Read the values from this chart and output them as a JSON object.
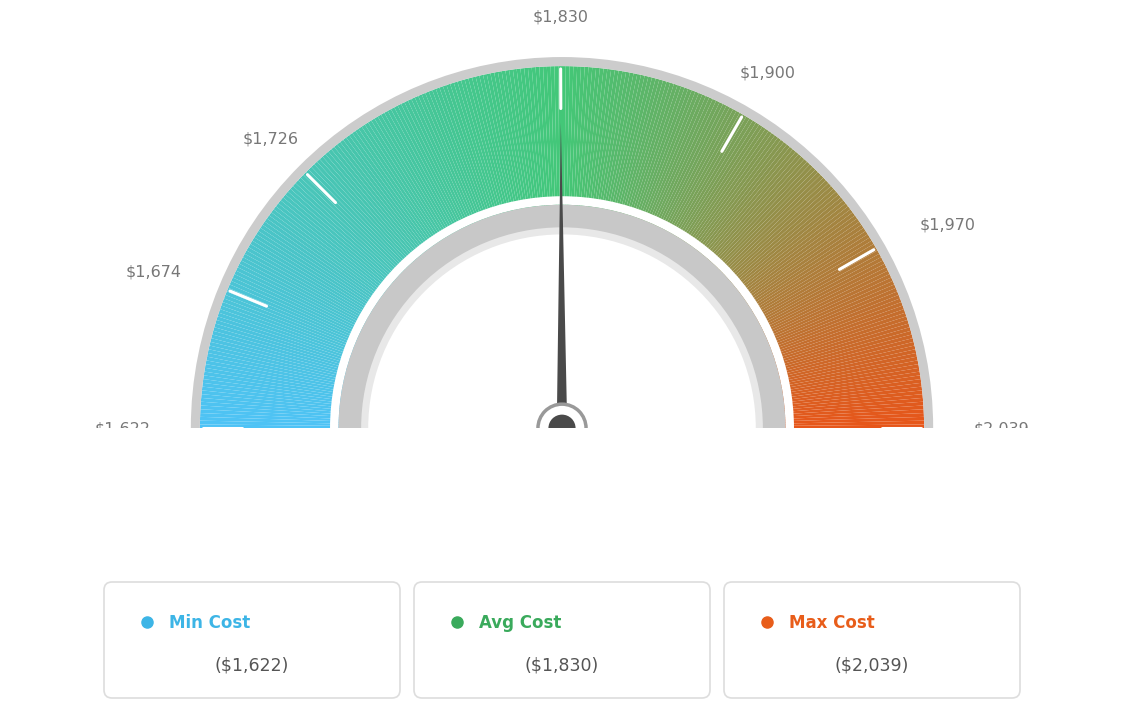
{
  "min_val": 1622,
  "max_val": 2039,
  "avg_val": 1830,
  "tick_labels": [
    "$1,622",
    "$1,674",
    "$1,726",
    "$1,830",
    "$1,900",
    "$1,970",
    "$2,039"
  ],
  "tick_values": [
    1622,
    1674,
    1726,
    1830,
    1900,
    1970,
    2039
  ],
  "legend_items": [
    {
      "label": "Min Cost",
      "value": "($1,622)",
      "color": "#3db5e6"
    },
    {
      "label": "Avg Cost",
      "value": "($1,830)",
      "color": "#3aaa5c"
    },
    {
      "label": "Max Cost",
      "value": "($2,039)",
      "color": "#e85d1a"
    }
  ],
  "background_color": "#ffffff",
  "needle_color": "#4a4a4a",
  "label_color": "#777777"
}
